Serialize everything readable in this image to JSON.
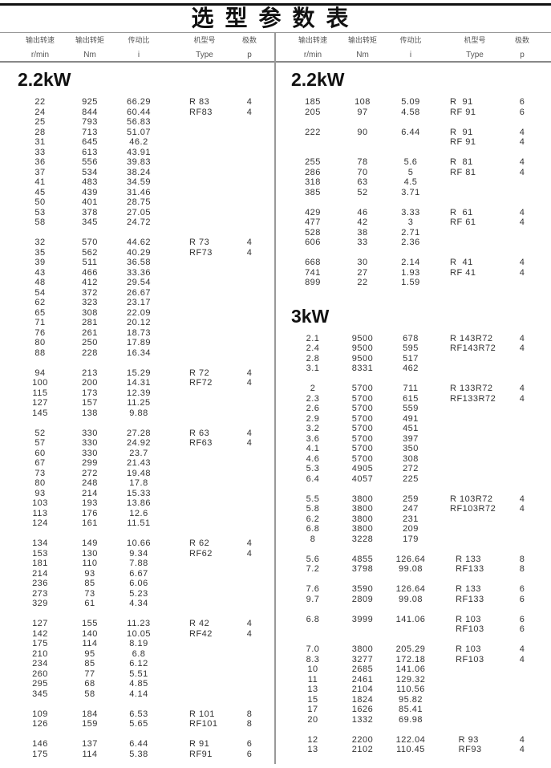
{
  "title": "选型参数表",
  "headers": [
    {
      "cn": "输出转速",
      "unit": "r/min"
    },
    {
      "cn": "输出转矩",
      "unit": "Nm"
    },
    {
      "cn": "传动比",
      "unit": "i"
    },
    {
      "cn": "机型号",
      "unit": "Type"
    },
    {
      "cn": "极数",
      "unit": "p"
    }
  ],
  "left": [
    {
      "heading": "2.2kW",
      "groups": [
        [
          [
            "22",
            "925",
            "66.29",
            "R 83",
            "4"
          ],
          [
            "24",
            "844",
            "60.44",
            "RF83",
            "4"
          ],
          [
            "25",
            "793",
            "56.83",
            "",
            ""
          ],
          [
            "28",
            "713",
            "51.07",
            "",
            ""
          ],
          [
            "31",
            "645",
            "46.2",
            "",
            ""
          ],
          [
            "33",
            "613",
            "43.91",
            "",
            ""
          ],
          [
            "36",
            "556",
            "39.83",
            "",
            ""
          ],
          [
            "37",
            "534",
            "38.24",
            "",
            ""
          ],
          [
            "41",
            "483",
            "34.59",
            "",
            ""
          ],
          [
            "45",
            "439",
            "31.46",
            "",
            ""
          ],
          [
            "50",
            "401",
            "28.75",
            "",
            ""
          ],
          [
            "53",
            "378",
            "27.05",
            "",
            ""
          ],
          [
            "58",
            "345",
            "24.72",
            "",
            ""
          ]
        ],
        [
          [
            "32",
            "570",
            "44.62",
            "R 73",
            "4"
          ],
          [
            "35",
            "562",
            "40.29",
            "RF73",
            "4"
          ],
          [
            "39",
            "511",
            "36.58",
            "",
            ""
          ],
          [
            "43",
            "466",
            "33.36",
            "",
            ""
          ],
          [
            "48",
            "412",
            "29.54",
            "",
            ""
          ],
          [
            "54",
            "372",
            "26.67",
            "",
            ""
          ],
          [
            "62",
            "323",
            "23.17",
            "",
            ""
          ],
          [
            "65",
            "308",
            "22.09",
            "",
            ""
          ],
          [
            "71",
            "281",
            "20.12",
            "",
            ""
          ],
          [
            "76",
            "261",
            "18.73",
            "",
            ""
          ],
          [
            "80",
            "250",
            "17.89",
            "",
            ""
          ],
          [
            "88",
            "228",
            "16.34",
            "",
            ""
          ]
        ],
        [
          [
            "94",
            "213",
            "15.29",
            "R 72",
            "4"
          ],
          [
            "100",
            "200",
            "14.31",
            "RF72",
            "4"
          ],
          [
            "115",
            "173",
            "12.39",
            "",
            ""
          ],
          [
            "127",
            "157",
            "11.25",
            "",
            ""
          ],
          [
            "145",
            "138",
            "9.88",
            "",
            ""
          ]
        ],
        [
          [
            "52",
            "330",
            "27.28",
            "R 63",
            "4"
          ],
          [
            "57",
            "330",
            "24.92",
            "RF63",
            "4"
          ],
          [
            "60",
            "330",
            "23.7",
            "",
            ""
          ],
          [
            "67",
            "299",
            "21.43",
            "",
            ""
          ],
          [
            "73",
            "272",
            "19.48",
            "",
            ""
          ],
          [
            "80",
            "248",
            "17.8",
            "",
            ""
          ],
          [
            "93",
            "214",
            "15.33",
            "",
            ""
          ],
          [
            "103",
            "193",
            "13.86",
            "",
            ""
          ],
          [
            "113",
            "176",
            "12.6",
            "",
            ""
          ],
          [
            "124",
            "161",
            "11.51",
            "",
            ""
          ]
        ],
        [
          [
            "134",
            "149",
            "10.66",
            "R 62",
            "4"
          ],
          [
            "153",
            "130",
            "9.34",
            "RF62",
            "4"
          ],
          [
            "181",
            "110",
            "7.88",
            "",
            ""
          ],
          [
            "214",
            "93",
            "6.67",
            "",
            ""
          ],
          [
            "236",
            "85",
            "6.06",
            "",
            ""
          ],
          [
            "273",
            "73",
            "5.23",
            "",
            ""
          ],
          [
            "329",
            "61",
            "4.34",
            "",
            ""
          ]
        ],
        [
          [
            "127",
            "155",
            "11.23",
            "R 42",
            "4"
          ],
          [
            "142",
            "140",
            "10.05",
            "RF42",
            "4"
          ],
          [
            "175",
            "114",
            "8.19",
            "",
            ""
          ],
          [
            "210",
            "95",
            "6.8",
            "",
            ""
          ],
          [
            "234",
            "85",
            "6.12",
            "",
            ""
          ],
          [
            "260",
            "77",
            "5.51",
            "",
            ""
          ],
          [
            "295",
            "68",
            "4.85",
            "",
            ""
          ],
          [
            "345",
            "58",
            "4.14",
            "",
            ""
          ]
        ],
        [
          [
            "109",
            "184",
            "6.53",
            "R 101",
            "8"
          ],
          [
            "126",
            "159",
            "5.65",
            "RF101",
            "8"
          ]
        ],
        [
          [
            "146",
            "137",
            "6.44",
            "R 91",
            "6"
          ],
          [
            "175",
            "114",
            "5.38",
            "RF91",
            "6"
          ]
        ]
      ]
    }
  ],
  "right": [
    {
      "heading": "2.2kW",
      "groups": [
        [
          [
            "185",
            "108",
            "5.09",
            "R  91",
            "6"
          ],
          [
            "205",
            "97",
            "4.58",
            "RF 91",
            "6"
          ]
        ],
        [
          [
            "222",
            "90",
            "6.44",
            "R  91",
            "4"
          ],
          [
            "",
            "",
            "",
            "RF 91",
            "4"
          ]
        ],
        [
          [
            "255",
            "78",
            "5.6",
            "R  81",
            "4"
          ],
          [
            "286",
            "70",
            "5",
            "RF 81",
            "4"
          ],
          [
            "318",
            "63",
            "4.5",
            "",
            ""
          ],
          [
            "385",
            "52",
            "3.71",
            "",
            ""
          ]
        ],
        [
          [
            "429",
            "46",
            "3.33",
            "R  61",
            "4"
          ],
          [
            "477",
            "42",
            "3",
            "RF 61",
            "4"
          ],
          [
            "528",
            "38",
            "2.71",
            "",
            ""
          ],
          [
            "606",
            "33",
            "2.36",
            "",
            ""
          ]
        ],
        [
          [
            "668",
            "30",
            "2.14",
            "R  41",
            "4"
          ],
          [
            "741",
            "27",
            "1.93",
            "RF 41",
            "4"
          ],
          [
            "899",
            "22",
            "1.59",
            "",
            ""
          ]
        ]
      ]
    },
    {
      "heading": "3kW",
      "groups": [
        [
          [
            "2.1",
            "9500",
            "678",
            "R 143R72",
            "4"
          ],
          [
            "2.4",
            "9500",
            "595",
            "RF143R72",
            "4"
          ],
          [
            "2.8",
            "9500",
            "517",
            "",
            ""
          ],
          [
            "3.1",
            "8331",
            "462",
            "",
            ""
          ]
        ],
        [
          [
            "2",
            "5700",
            "711",
            "R 133R72",
            "4"
          ],
          [
            "2.3",
            "5700",
            "615",
            "RF133R72",
            "4"
          ],
          [
            "2.6",
            "5700",
            "559",
            "",
            ""
          ],
          [
            "2.9",
            "5700",
            "491",
            "",
            ""
          ],
          [
            "3.2",
            "5700",
            "451",
            "",
            ""
          ],
          [
            "3.6",
            "5700",
            "397",
            "",
            ""
          ],
          [
            "4.1",
            "5700",
            "350",
            "",
            ""
          ],
          [
            "4.6",
            "5700",
            "308",
            "",
            ""
          ],
          [
            "5.3",
            "4905",
            "272",
            "",
            ""
          ],
          [
            "6.4",
            "4057",
            "225",
            "",
            ""
          ]
        ],
        [
          [
            "5.5",
            "3800",
            "259",
            "R 103R72",
            "4"
          ],
          [
            "5.8",
            "3800",
            "247",
            "RF103R72",
            "4"
          ],
          [
            "6.2",
            "3800",
            "231",
            "",
            ""
          ],
          [
            "6.8",
            "3800",
            "209",
            "",
            ""
          ],
          [
            "8",
            "3228",
            "179",
            "",
            ""
          ]
        ],
        [
          [
            "5.6",
            "4855",
            "126.64",
            "  R 133",
            "8"
          ],
          [
            "7.2",
            "3798",
            "99.08",
            "  RF133",
            "8"
          ]
        ],
        [
          [
            "7.6",
            "3590",
            "126.64",
            "  R 133",
            "6"
          ],
          [
            "9.7",
            "2809",
            "99.08",
            "  RF133",
            "6"
          ]
        ],
        [
          [
            "6.8",
            "3999",
            "141.06",
            "  R 103",
            "6"
          ],
          [
            "",
            "",
            "",
            "  RF103",
            "6"
          ]
        ],
        [
          [
            "7.0",
            "3800",
            "205.29",
            "  R 103",
            "4"
          ],
          [
            "8.3",
            "3277",
            "172.18",
            "  RF103",
            "4"
          ],
          [
            "10",
            "2685",
            "141.06",
            "",
            ""
          ],
          [
            "11",
            "2461",
            "129.32",
            "",
            ""
          ],
          [
            "13",
            "2104",
            "110.56",
            "",
            ""
          ],
          [
            "15",
            "1824",
            "95.82",
            "",
            ""
          ],
          [
            "17",
            "1626",
            "85.41",
            "",
            ""
          ],
          [
            "20",
            "1332",
            "69.98",
            "",
            ""
          ]
        ],
        [
          [
            "12",
            "2200",
            "122.04",
            "   R 93",
            "4"
          ],
          [
            "13",
            "2102",
            "110.45",
            "   RF93",
            "4"
          ]
        ]
      ]
    }
  ]
}
